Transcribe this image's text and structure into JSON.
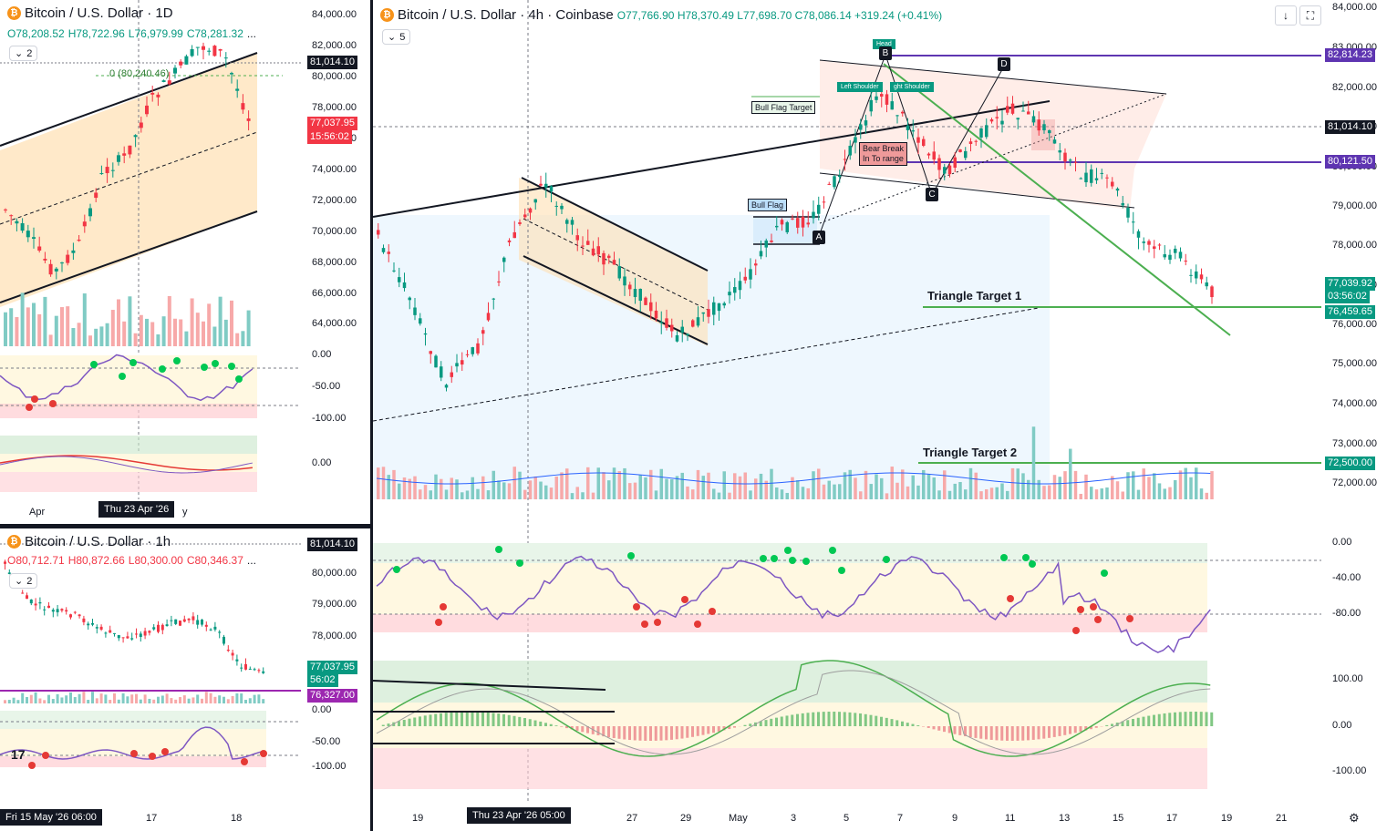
{
  "colors": {
    "up": "#089981",
    "down": "#f23645",
    "purple": "#7e57c2",
    "green": "#4caf50",
    "dark": "#131722",
    "blue": "#2962ff",
    "tag_red": "#f23645",
    "tag_green": "#089981",
    "tag_purple": "#9c27b0"
  },
  "daily": {
    "title": "Bitcoin / U.S. Dollar · 1D",
    "o": "O78,208.52",
    "h": "H78,722.96",
    "l": "L76,979.99",
    "c": "C78,281.32",
    "more": "...",
    "indicator_count": "2",
    "y_labels": [
      "84,000.00",
      "82,000.00",
      "80,000.00",
      "78,000.00",
      "76,000.00",
      "74,000.00",
      "72,000.00",
      "70,000.00",
      "68,000.00",
      "66,000.00",
      "64,000.00"
    ],
    "price_tag": "81,014.10",
    "last_price": "77,037.95",
    "countdown": "15:56:02",
    "fib_label": "0 (80,240.46)",
    "osc1_labels": [
      "0.00",
      "-50.00",
      "-100.00"
    ],
    "osc2_labels": [
      "0.00"
    ],
    "x_labels": [
      "Apr",
      "y"
    ],
    "crosshair_date": "Thu 23 Apr '26"
  },
  "hourly": {
    "title": "Bitcoin / U.S. Dollar · 1h",
    "o": "O80,712.71",
    "h": "H80,872.66",
    "l": "L80,300.00",
    "c": "C80,346.37",
    "more": "...",
    "indicator_count": "2",
    "y_labels": [
      "80,000.00",
      "79,000.00",
      "78,000.00"
    ],
    "price_tag": "81,014.10",
    "last_price": "77,037.95",
    "countdown": "56:02",
    "purple_tag": "76,327.00",
    "osc_labels": [
      "0.00",
      "-50.00",
      "-100.00"
    ],
    "x_labels": [
      "17",
      "18"
    ],
    "crosshair_date": "Fri 15 May '26   06:00",
    "logo": "17"
  },
  "main": {
    "title": "Bitcoin / U.S. Dollar · 4h · Coinbase",
    "o": "O77,766.90",
    "h": "H78,370.49",
    "l": "L77,698.70",
    "c": "C78,086.14",
    "change": "+319.24 (+0.41%)",
    "indicator_count": "5",
    "y_labels": [
      "84,000.00",
      "83,000.00",
      "82,000.00",
      "81,000.00",
      "80,000.00",
      "79,000.00",
      "78,000.00",
      "77,000.00",
      "76,000.00",
      "75,000.00",
      "74,000.00",
      "73,000.00",
      "72,000.00"
    ],
    "tags": {
      "purple_high": "82,814.23",
      "black": "81,014.10",
      "purple_mid": "80,121.50",
      "last_price": "77,039.92",
      "countdown": "03:56:02",
      "target1": "76,459.65",
      "target2": "72,500.00"
    },
    "osc1_labels": [
      "0.00",
      "-40.00",
      "-80.00"
    ],
    "osc2_labels": [
      "100.00",
      "0.00",
      "-100.00"
    ],
    "x_labels": [
      "19",
      "27",
      "29",
      "May",
      "3",
      "5",
      "7",
      "9",
      "11",
      "13",
      "15",
      "17",
      "19",
      "21"
    ],
    "crosshair_date": "Thu 23 Apr '26   05:00",
    "annotations": {
      "head": "Head",
      "left_shoulder": "Left Shoulder",
      "right_shoulder": "ght Shoulder",
      "bull_flag_target": "Bull Flag Target",
      "bull_flag": "Bull Flag",
      "bear_break": "Bear Break\nIn To range",
      "triangle_target_1": "Triangle Target 1",
      "triangle_target_2": "Triangle Target 2"
    },
    "points": {
      "a": "A",
      "b": "B",
      "c": "C",
      "d": "D"
    }
  }
}
